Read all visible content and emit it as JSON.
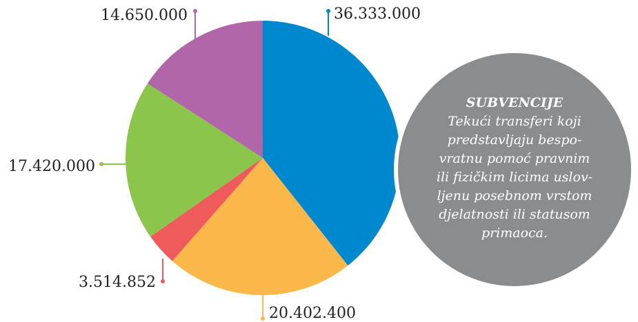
{
  "chart_data": {
    "type": "pie",
    "values": [
      36333000,
      20402400,
      3514852,
      17420000,
      14650000
    ],
    "value_labels": [
      "36.333.000",
      "20.402.400",
      "3.514.852",
      "17.420.000",
      "14.650.000"
    ],
    "colors": [
      "#0088cf",
      "#fbb84a",
      "#ef5a5b",
      "#8cc54b",
      "#b066a9"
    ],
    "note_title": "SUBVENCIJE",
    "note_lines": [
      "Tekući transferi koji",
      "predstavljaju bespo-",
      "vratnu pomoć pravnim",
      "ili fizičkim licima uslov-",
      "ljenu posebnom vrstom",
      "djelatnosti ili statusom",
      "primaoca."
    ]
  }
}
